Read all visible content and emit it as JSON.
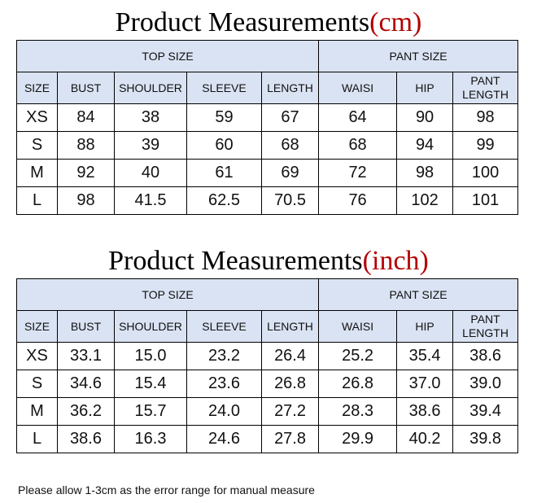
{
  "tables": [
    {
      "title_main": "Product Measurements",
      "title_paren_open": "(",
      "title_unit": "cm",
      "title_paren_close": ")",
      "top_group": "TOP  SIZE",
      "pant_group": "PANT SIZE",
      "columns": [
        "SIZE",
        "BUST",
        "SHOULDER",
        "SLEEVE",
        "LENGTH",
        "WAISI",
        "HIP",
        "PANT LENGTH"
      ],
      "rows": [
        [
          "XS",
          "84",
          "38",
          "59",
          "67",
          "64",
          "90",
          "98"
        ],
        [
          "S",
          "88",
          "39",
          "60",
          "68",
          "68",
          "94",
          "99"
        ],
        [
          "M",
          "92",
          "40",
          "61",
          "69",
          "72",
          "98",
          "100"
        ],
        [
          "L",
          "98",
          "41.5",
          "62.5",
          "70.5",
          "76",
          "102",
          "101"
        ]
      ]
    },
    {
      "title_main": "Product Measurements",
      "title_paren_open": "(",
      "title_unit": "inch",
      "title_paren_close": ")",
      "top_group": "TOP SIZE",
      "pant_group": "PANT SIZE",
      "columns": [
        "SIZE",
        "BUST",
        "SHOULDER",
        "SLEEVE",
        "LENGTH",
        "WAISI",
        "HIP",
        "PANT LENGTH"
      ],
      "rows": [
        [
          "XS",
          "33.1",
          "15.0",
          "23.2",
          "26.4",
          "25.2",
          "35.4",
          "38.6"
        ],
        [
          "S",
          "34.6",
          "15.4",
          "23.6",
          "26.8",
          "26.8",
          "37.0",
          "39.0"
        ],
        [
          "M",
          "36.2",
          "15.7",
          "24.0",
          "27.2",
          "28.3",
          "38.6",
          "39.4"
        ],
        [
          "L",
          "38.6",
          "16.3",
          "24.6",
          "27.8",
          "29.9",
          "40.2",
          "39.8"
        ]
      ]
    }
  ],
  "footnote": "Please allow 1-3cm as the error range for manual measure",
  "colors": {
    "header_bg": "#dae3f3",
    "unit_text": "#b30000",
    "border": "#000000"
  }
}
